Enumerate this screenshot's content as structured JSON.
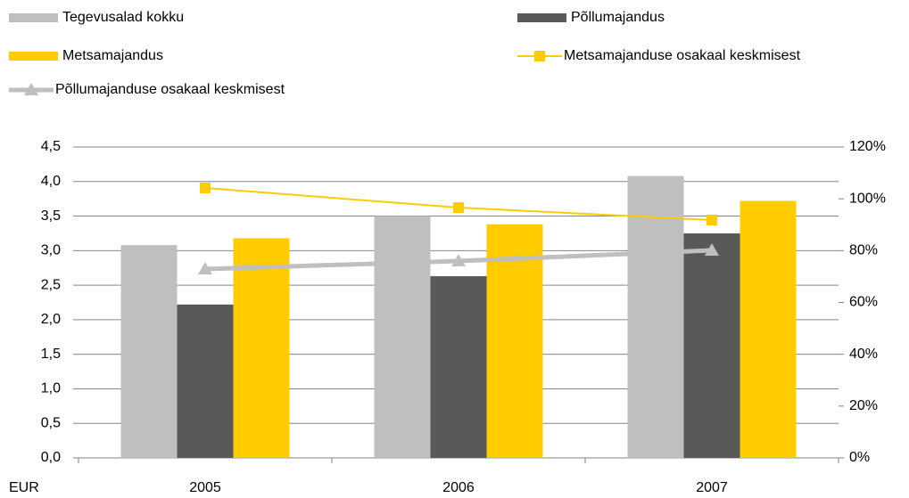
{
  "chart_data": {
    "type": "bar",
    "categories": [
      "2005",
      "2006",
      "2007"
    ],
    "ylabel": "EUR",
    "ylim": [
      0,
      4.5
    ],
    "yticks": [
      {
        "value": 0,
        "label": "0,0"
      },
      {
        "value": 0.5,
        "label": "0,5"
      },
      {
        "value": 1,
        "label": "1,0"
      },
      {
        "value": 1.5,
        "label": "1,5"
      },
      {
        "value": 2,
        "label": "2,0"
      },
      {
        "value": 2.5,
        "label": "2,5"
      },
      {
        "value": 3,
        "label": "3,0"
      },
      {
        "value": 3.5,
        "label": "3,5"
      },
      {
        "value": 4,
        "label": "4,0"
      },
      {
        "value": 4.5,
        "label": "4,5"
      }
    ],
    "y2lim": [
      0,
      120
    ],
    "y2ticks": [
      {
        "value": 0,
        "label": "0%"
      },
      {
        "value": 20,
        "label": "20%"
      },
      {
        "value": 40,
        "label": "40%"
      },
      {
        "value": 60,
        "label": "60%"
      },
      {
        "value": 80,
        "label": "80%"
      },
      {
        "value": 100,
        "label": "100%"
      },
      {
        "value": 120,
        "label": "120%"
      }
    ],
    "grid": true,
    "series": [
      {
        "name": "Tegevusalad kokku",
        "type": "bar",
        "color": "#bfbfbf",
        "values": [
          3.08,
          3.5,
          4.08
        ]
      },
      {
        "name": "Põllumajandus",
        "type": "bar",
        "color": "#595959",
        "values": [
          2.22,
          2.63,
          3.25
        ]
      },
      {
        "name": "Metsamajandus",
        "type": "bar",
        "color": "#ffcc00",
        "values": [
          3.18,
          3.38,
          3.72
        ]
      },
      {
        "name": "Metsamajanduse osakaal keskmisest",
        "type": "line",
        "axis": "y2",
        "marker": "square",
        "color": "#ffcc00",
        "values": [
          104.2,
          96.6,
          91.8
        ]
      },
      {
        "name": "Põllumajanduse osakaal keskmisest",
        "type": "line",
        "axis": "y2",
        "marker": "triangle",
        "color": "#bfbfbf",
        "values": [
          72.9,
          76,
          80.1
        ]
      }
    ]
  }
}
